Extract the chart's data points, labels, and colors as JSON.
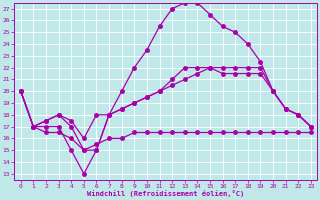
{
  "xlabel": "Windchill (Refroidissement éolien,°C)",
  "bg_color": "#c0e8e8",
  "line_color": "#aa00aa",
  "grid_color": "#ffffff",
  "xlim": [
    -0.5,
    23.5
  ],
  "ylim": [
    12.5,
    27.5
  ],
  "yticks": [
    13,
    14,
    15,
    16,
    17,
    18,
    19,
    20,
    21,
    22,
    23,
    24,
    25,
    26,
    27
  ],
  "xticks": [
    0,
    1,
    2,
    3,
    4,
    5,
    6,
    7,
    8,
    9,
    10,
    11,
    12,
    13,
    14,
    15,
    16,
    17,
    18,
    19,
    20,
    21,
    22,
    23
  ],
  "line3_x": [
    0,
    1,
    2,
    3,
    4,
    5,
    6,
    7,
    8,
    9,
    10,
    11,
    12,
    13,
    14,
    15,
    16,
    17,
    18,
    19,
    20,
    21,
    22,
    23
  ],
  "line3_y": [
    20,
    17,
    17,
    17,
    15,
    13,
    15,
    18,
    20,
    22,
    23.5,
    25.5,
    27,
    27.5,
    27.5,
    26.5,
    25.5,
    25,
    24,
    22.5,
    20,
    18.5,
    18,
    17
  ],
  "line2_x": [
    0,
    1,
    2,
    3,
    4,
    5,
    6,
    7,
    8,
    9,
    10,
    11,
    12,
    13,
    14,
    15,
    16,
    17,
    18,
    19,
    20,
    21,
    22,
    23
  ],
  "line2_y": [
    20,
    17,
    17.5,
    18,
    17,
    15,
    15,
    18,
    18.5,
    19,
    19.5,
    20,
    21,
    22,
    22,
    22,
    21.5,
    21.5,
    21.5,
    21.5,
    20,
    18.5,
    18,
    17
  ],
  "line1_x": [
    0,
    1,
    2,
    3,
    4,
    5,
    6,
    7,
    8,
    9,
    10,
    11,
    12,
    13,
    14,
    15,
    16,
    17,
    18,
    19,
    20,
    21,
    22,
    23
  ],
  "line1_y": [
    20,
    17,
    17.5,
    18,
    17.5,
    16,
    18,
    18,
    18.5,
    19,
    19.5,
    20,
    20.5,
    21,
    21.5,
    22,
    22,
    22,
    22,
    22,
    20,
    18.5,
    18,
    17
  ],
  "line4_x": [
    0,
    1,
    2,
    3,
    4,
    5,
    6,
    7,
    8,
    9,
    10,
    11,
    12,
    13,
    14,
    15,
    16,
    17,
    18,
    19,
    20,
    21,
    22,
    23
  ],
  "line4_y": [
    20,
    17,
    16.5,
    16.5,
    16,
    15,
    15.5,
    16,
    16,
    16.5,
    16.5,
    16.5,
    16.5,
    16.5,
    16.5,
    16.5,
    16.5,
    16.5,
    16.5,
    16.5,
    16.5,
    16.5,
    16.5,
    16.5
  ]
}
